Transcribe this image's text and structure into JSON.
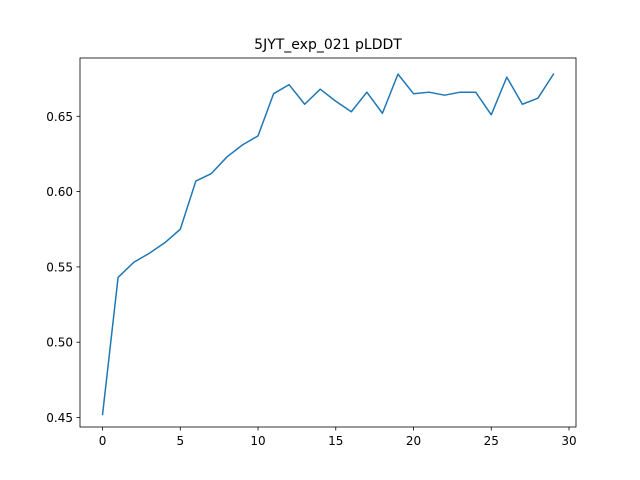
{
  "chart_data": {
    "type": "line",
    "title": "5JYT_exp_021 pLDDT",
    "xlabel": "",
    "ylabel": "",
    "xlim": [
      -1.45,
      30.45
    ],
    "ylim": [
      0.4437,
      0.6887
    ],
    "xticks": [
      0,
      5,
      10,
      15,
      20,
      25,
      30
    ],
    "xtick_labels": [
      "0",
      "5",
      "10",
      "15",
      "20",
      "25",
      "30"
    ],
    "yticks": [
      0.45,
      0.5,
      0.55,
      0.6,
      0.65
    ],
    "ytick_labels": [
      "0.45",
      "0.50",
      "0.55",
      "0.60",
      "0.65"
    ],
    "grid": false,
    "series": [
      {
        "name": "pLDDT",
        "color": "#1f77b4",
        "x": [
          0,
          1,
          2,
          3,
          4,
          5,
          6,
          7,
          8,
          9,
          10,
          11,
          12,
          13,
          14,
          15,
          16,
          17,
          18,
          19,
          20,
          21,
          22,
          23,
          24,
          25,
          26,
          27,
          28,
          29
        ],
        "values": [
          0.452,
          0.543,
          0.553,
          0.559,
          0.566,
          0.575,
          0.607,
          0.612,
          0.623,
          0.631,
          0.637,
          0.665,
          0.671,
          0.658,
          0.668,
          0.66,
          0.653,
          0.666,
          0.652,
          0.678,
          0.665,
          0.666,
          0.664,
          0.666,
          0.666,
          0.651,
          0.676,
          0.658,
          0.662,
          0.678
        ]
      }
    ]
  }
}
